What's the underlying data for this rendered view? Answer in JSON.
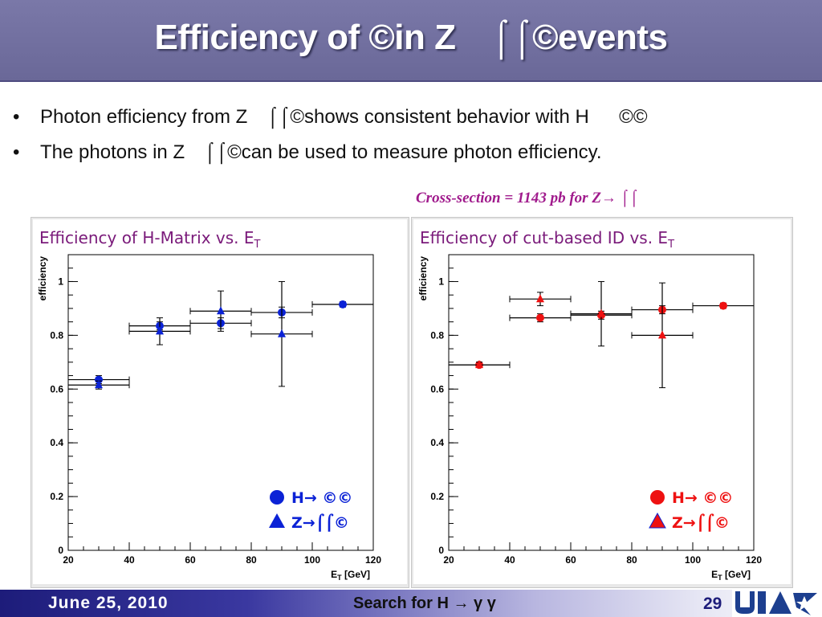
{
  "slide": {
    "title": "Efficiency of ©in Z ⌠⌠©events",
    "bullets": [
      "Photon efficiency from Z ⌠⌠©shows consistent behavior with H   ©©",
      "The photons in  Z ⌠⌠©can be used to measure photon efficiency."
    ],
    "cross_section": "Cross-section = 1143 pb  for Z→ ⌠⌠",
    "footer_date": "June 25, 2010",
    "footer_center": "Search for H → γ γ",
    "page_number": "29"
  },
  "chart_data": [
    {
      "type": "scatter",
      "title": "Efficiency of H-Matrix vs. E",
      "title_sub": "T",
      "xlabel": "E",
      "xlabel_sub": "T",
      "xlabel_unit": " [GeV]",
      "ylabel": "efficiency",
      "xlim": [
        20,
        120
      ],
      "ylim": [
        0,
        1.1
      ],
      "xticks": [
        "20",
        "40",
        "60",
        "80",
        "100",
        "120"
      ],
      "yticks": [
        "0",
        "0.2",
        "0.4",
        "0.6",
        "0.8",
        "1"
      ],
      "marker_color": "#0b22d6",
      "legend_position": "bottom-right",
      "series": [
        {
          "name": "H→ ©©",
          "marker": "circle",
          "points": [
            {
              "x": 30,
              "xerr": 10,
              "y": 0.635,
              "yerr": 0.015
            },
            {
              "x": 50,
              "xerr": 10,
              "y": 0.835,
              "yerr": 0.015
            },
            {
              "x": 70,
              "xerr": 10,
              "y": 0.845,
              "yerr": 0.02
            },
            {
              "x": 90,
              "xerr": 10,
              "y": 0.885,
              "yerr": 0.02
            },
            {
              "x": 110,
              "xerr": 10,
              "y": 0.915,
              "yerr": 0.01
            }
          ]
        },
        {
          "name": "Z→⌠⌠©",
          "marker": "triangle",
          "points": [
            {
              "x": 30,
              "xerr": 10,
              "y": 0.615,
              "yerr": 0.015
            },
            {
              "x": 50,
              "xerr": 10,
              "y": 0.815,
              "yerr": 0.05
            },
            {
              "x": 70,
              "xerr": 10,
              "y": 0.89,
              "yerr": 0.075
            },
            {
              "x": 90,
              "xerr": 10,
              "y": 0.805,
              "yerr": 0.195
            }
          ]
        }
      ]
    },
    {
      "type": "scatter",
      "title": "Efficiency of cut-based ID vs. E",
      "title_sub": "T",
      "xlabel": "E",
      "xlabel_sub": "T",
      "xlabel_unit": " [GeV]",
      "ylabel": "efficiency",
      "xlim": [
        20,
        120
      ],
      "ylim": [
        0,
        1.1
      ],
      "xticks": [
        "20",
        "40",
        "60",
        "80",
        "100",
        "120"
      ],
      "yticks": [
        "0",
        "0.2",
        "0.4",
        "0.6",
        "0.8",
        "1"
      ],
      "marker_color": "#ee1111",
      "legend_position": "bottom-right",
      "series": [
        {
          "name": "H→ ©©",
          "marker": "circle",
          "points": [
            {
              "x": 30,
              "xerr": 10,
              "y": 0.69,
              "yerr": 0.01
            },
            {
              "x": 50,
              "xerr": 10,
              "y": 0.865,
              "yerr": 0.015
            },
            {
              "x": 70,
              "xerr": 10,
              "y": 0.875,
              "yerr": 0.015
            },
            {
              "x": 90,
              "xerr": 10,
              "y": 0.895,
              "yerr": 0.015
            },
            {
              "x": 110,
              "xerr": 10,
              "y": 0.91,
              "yerr": 0.01
            }
          ]
        },
        {
          "name": "Z→⌠⌠©",
          "marker": "triangle",
          "points": [
            {
              "x": 30,
              "xerr": 10,
              "y": 0.69,
              "yerr": 0.01
            },
            {
              "x": 50,
              "xerr": 10,
              "y": 0.935,
              "yerr": 0.025
            },
            {
              "x": 70,
              "xerr": 10,
              "y": 0.88,
              "yerr": 0.12
            },
            {
              "x": 90,
              "xerr": 10,
              "y": 0.8,
              "yerr": 0.195
            }
          ]
        }
      ]
    }
  ]
}
